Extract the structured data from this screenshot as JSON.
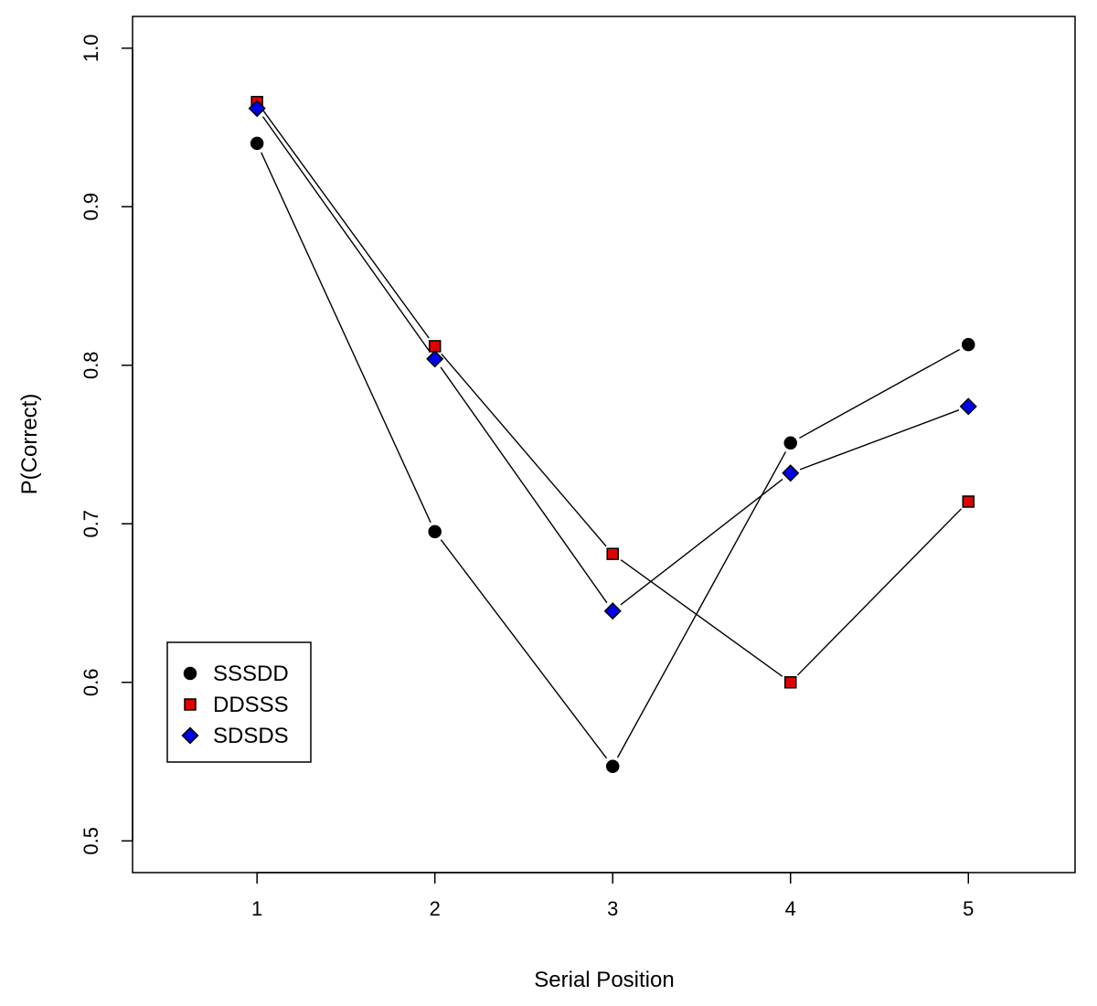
{
  "chart_data": {
    "type": "line",
    "title": "",
    "xlabel": "Serial Position",
    "ylabel": "P(Correct)",
    "x": [
      1,
      2,
      3,
      4,
      5
    ],
    "xlim": [
      0.3,
      5.6
    ],
    "ylim": [
      0.48,
      1.02
    ],
    "x_ticks": [
      1,
      2,
      3,
      4,
      5
    ],
    "y_ticks": [
      0.5,
      0.6,
      0.7,
      0.8,
      0.9,
      1.0
    ],
    "x_tick_labels": [
      "1",
      "2",
      "3",
      "4",
      "5"
    ],
    "y_tick_labels": [
      "0.5",
      "0.6",
      "0.7",
      "0.8",
      "0.9",
      "1.0"
    ],
    "grid": false,
    "legend_position": "bottom-left",
    "series": [
      {
        "name": "SSSDD",
        "marker": "circle",
        "color": "#000000",
        "values": [
          0.94,
          0.695,
          0.547,
          0.751,
          0.813
        ]
      },
      {
        "name": "DDSSS",
        "marker": "square",
        "color": "#e00000",
        "values": [
          0.966,
          0.812,
          0.681,
          0.6,
          0.714
        ]
      },
      {
        "name": "SDSDS",
        "marker": "diamond",
        "color": "#0000e6",
        "values": [
          0.962,
          0.804,
          0.645,
          0.732,
          0.774
        ]
      }
    ]
  }
}
